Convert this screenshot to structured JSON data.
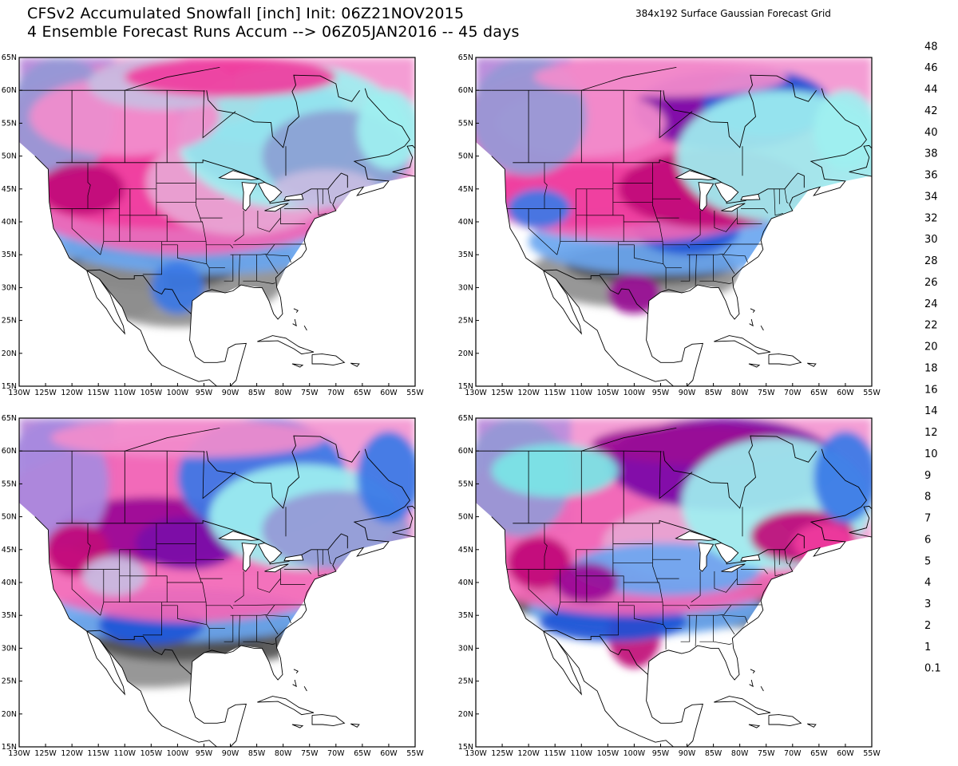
{
  "title": {
    "line1": "CFSv2 Accumulated Snowfall [inch] Init: 06Z21NOV2015",
    "line2": "4 Ensemble Forecast Runs Accum --> 06Z05JAN2016 -- 45 days"
  },
  "grid_note": "384x192 Surface Gaussian Forecast Grid",
  "map": {
    "lat_labels": [
      "65N",
      "60N",
      "55N",
      "50N",
      "45N",
      "40N",
      "35N",
      "30N",
      "25N",
      "20N",
      "15N"
    ],
    "lon_labels": [
      "130W",
      "125W",
      "120W",
      "115W",
      "110W",
      "105W",
      "100W",
      "95W",
      "90W",
      "85W",
      "80W",
      "75W",
      "70W",
      "65W",
      "60W",
      "55W"
    ]
  },
  "panels": [
    {
      "name": "ensemble-run-1"
    },
    {
      "name": "ensemble-run-2"
    },
    {
      "name": "ensemble-run-3"
    },
    {
      "name": "ensemble-run-4"
    }
  ],
  "legend": {
    "unit": "inch",
    "levels": [
      {
        "label": "48",
        "color": "#b070e8"
      },
      {
        "label": "46",
        "color": "#b47ae8"
      },
      {
        "label": "44",
        "color": "#a78ae0"
      },
      {
        "label": "42",
        "color": "#9a90dc"
      },
      {
        "label": "40",
        "color": "#9599d6"
      },
      {
        "label": "38",
        "color": "#8ba0d4"
      },
      {
        "label": "36",
        "color": "#86a8d0"
      },
      {
        "label": "34",
        "color": "#74a8c0"
      },
      {
        "label": "32",
        "color": "#6aaebb"
      },
      {
        "label": "30",
        "color": "#62b3b7"
      },
      {
        "label": "28",
        "color": "#5fc5c1"
      },
      {
        "label": "26",
        "color": "#78e6e6"
      },
      {
        "label": "24",
        "color": "#9ef0f0"
      },
      {
        "label": "22",
        "color": "#b4d8e8"
      },
      {
        "label": "20",
        "color": "#c8bde2"
      },
      {
        "label": "18",
        "color": "#e8a6d4"
      },
      {
        "label": "16",
        "color": "#f28ccc"
      },
      {
        "label": "14",
        "color": "#f266b6"
      },
      {
        "label": "12",
        "color": "#f03c9e"
      },
      {
        "label": "10",
        "color": "#e00c82"
      },
      {
        "label": "9",
        "color": "#c00878"
      },
      {
        "label": "8",
        "color": "#9a0a96"
      },
      {
        "label": "7",
        "color": "#7a0aa8"
      },
      {
        "label": "6",
        "color": "#3414a8"
      },
      {
        "label": "5",
        "color": "#1e54d6"
      },
      {
        "label": "4",
        "color": "#3a78e6"
      },
      {
        "label": "3",
        "color": "#6aa6f0"
      },
      {
        "label": "2",
        "color": "#9ccaf8"
      },
      {
        "label": "1",
        "color": "#505050"
      },
      {
        "label": "0.1",
        "color": "#8e8e8e"
      },
      {
        "label": "",
        "color": "#bdbdbd"
      },
      {
        "label": "",
        "color": "#ffffff"
      }
    ]
  }
}
